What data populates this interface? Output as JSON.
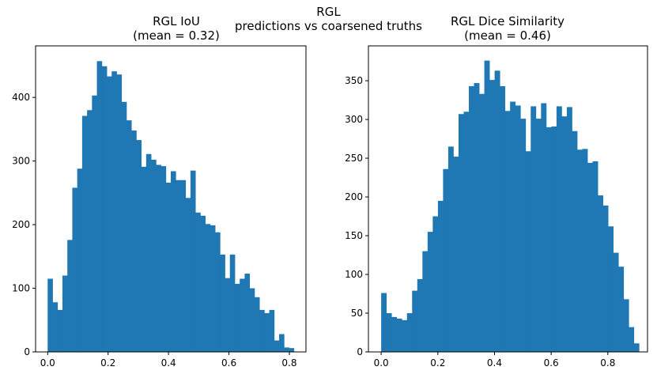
{
  "figure": {
    "suptitle_line1": "RGL",
    "suptitle_line2": "predictions vs coarsened truths"
  },
  "colors": {
    "bar": "#1f77b4",
    "axis": "#000000",
    "background": "#ffffff"
  },
  "chart_data": [
    {
      "type": "bar",
      "title_line1": "RGL IoU",
      "title_line2": "(mean = 0.32)",
      "xlabel": "",
      "ylabel": "",
      "grid": false,
      "bin_start": 0.0,
      "bin_width": 0.0163,
      "xlim": [
        -0.04,
        0.855
      ],
      "ylim": [
        0,
        481
      ],
      "xticks": [
        0.0,
        0.2,
        0.4,
        0.6,
        0.8
      ],
      "xtick_labels": [
        "0.0",
        "0.2",
        "0.4",
        "0.6",
        "0.8"
      ],
      "yticks": [
        0,
        100,
        200,
        300,
        400
      ],
      "ytick_labels": [
        "0",
        "100",
        "200",
        "300",
        "400"
      ],
      "values": [
        115,
        78,
        66,
        120,
        176,
        258,
        288,
        371,
        380,
        403,
        457,
        449,
        433,
        441,
        436,
        393,
        364,
        348,
        333,
        291,
        311,
        302,
        294,
        292,
        266,
        284,
        270,
        270,
        242,
        285,
        219,
        214,
        201,
        199,
        188,
        153,
        116,
        153,
        107,
        115,
        123,
        100,
        86,
        66,
        61,
        66,
        18,
        28,
        7,
        6
      ]
    },
    {
      "type": "bar",
      "title_line1": "RGL Dice Similarity",
      "title_line2": "(mean = 0.46)",
      "xlabel": "",
      "ylabel": "",
      "grid": false,
      "bin_start": 0.0,
      "bin_width": 0.0182,
      "xlim": [
        -0.045,
        0.94
      ],
      "ylim": [
        0,
        395
      ],
      "xticks": [
        0.0,
        0.2,
        0.4,
        0.6,
        0.8
      ],
      "xtick_labels": [
        "0.0",
        "0.2",
        "0.4",
        "0.6",
        "0.8"
      ],
      "yticks": [
        0,
        50,
        100,
        150,
        200,
        250,
        300,
        350
      ],
      "ytick_labels": [
        "0",
        "50",
        "100",
        "150",
        "200",
        "250",
        "300",
        "350"
      ],
      "values": [
        76,
        50,
        45,
        43,
        41,
        50,
        79,
        94,
        130,
        155,
        175,
        195,
        236,
        265,
        252,
        307,
        310,
        343,
        347,
        333,
        376,
        351,
        363,
        343,
        311,
        323,
        318,
        301,
        259,
        317,
        301,
        321,
        290,
        291,
        317,
        304,
        316,
        285,
        261,
        262,
        244,
        246,
        202,
        189,
        162,
        128,
        110,
        68,
        32,
        11
      ]
    }
  ]
}
